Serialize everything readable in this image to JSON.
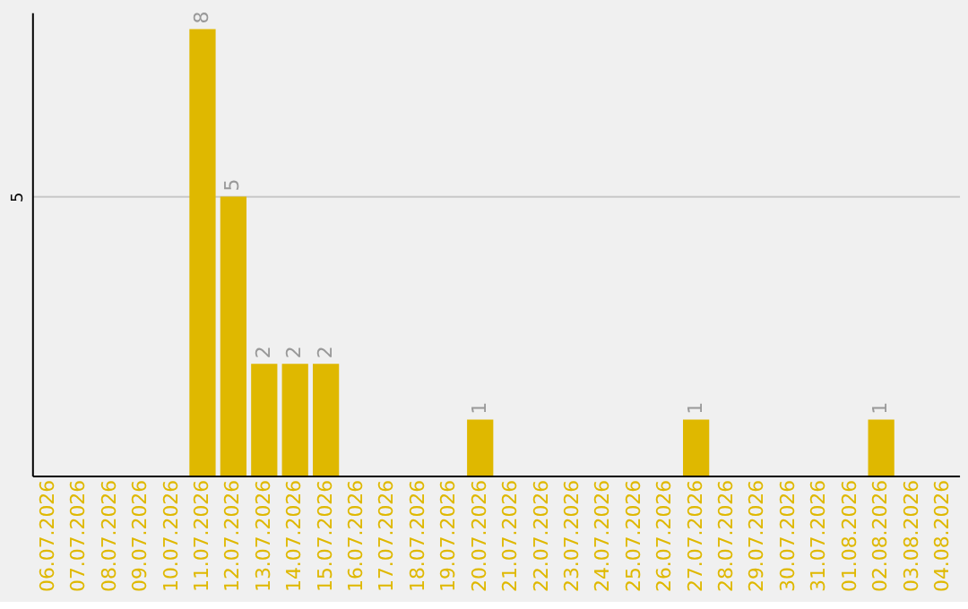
{
  "chart_data": {
    "type": "bar",
    "categories": [
      "06.07.2026",
      "07.07.2026",
      "08.07.2026",
      "09.07.2026",
      "10.07.2026",
      "11.07.2026",
      "12.07.2026",
      "13.07.2026",
      "14.07.2026",
      "15.07.2026",
      "16.07.2026",
      "17.07.2026",
      "18.07.2026",
      "19.07.2026",
      "20.07.2026",
      "21.07.2026",
      "22.07.2026",
      "23.07.2026",
      "24.07.2026",
      "25.07.2026",
      "26.07.2026",
      "27.07.2026",
      "28.07.2026",
      "29.07.2026",
      "30.07.2026",
      "31.07.2026",
      "01.08.2026",
      "02.08.2026",
      "03.08.2026",
      "04.08.2026"
    ],
    "values": [
      0,
      0,
      0,
      0,
      0,
      8,
      5,
      2,
      2,
      2,
      0,
      0,
      0,
      0,
      1,
      0,
      0,
      0,
      0,
      0,
      0,
      1,
      0,
      0,
      0,
      0,
      0,
      1,
      0,
      0
    ],
    "value_labels": [
      null,
      null,
      null,
      null,
      null,
      "8",
      "5",
      "2",
      "2",
      "2",
      null,
      null,
      null,
      null,
      "1",
      null,
      null,
      null,
      null,
      null,
      null,
      "1",
      null,
      null,
      null,
      null,
      null,
      "1",
      null,
      null
    ],
    "color": "#dfb800",
    "ylim": [
      0,
      8.3
    ],
    "yticks": [
      5
    ],
    "grid": "y"
  }
}
